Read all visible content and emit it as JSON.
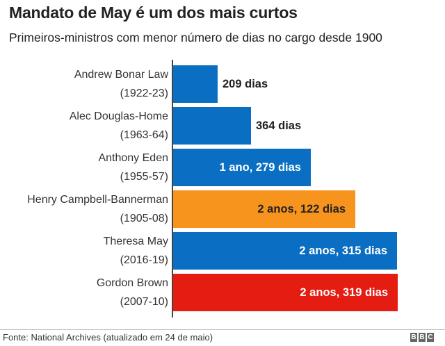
{
  "title": "Mandato de May é um dos mais curtos",
  "subtitle": "Primeiros-ministros com menor número de dias no cargo desde 1900",
  "bars": [
    {
      "name": "Andrew Bonar Law",
      "years": "(1922-23)",
      "label": "209 dias",
      "days": 209,
      "color": "#0a6fc2",
      "label_pos": "outside",
      "label_color": "#222222"
    },
    {
      "name": "Alec Douglas-Home",
      "years": "(1963-64)",
      "label": "364 dias",
      "days": 364,
      "color": "#0a6fc2",
      "label_pos": "outside",
      "label_color": "#222222"
    },
    {
      "name": "Anthony Eden",
      "years": "(1955-57)",
      "label": "1 ano, 279 dias",
      "days": 644,
      "color": "#0a6fc2",
      "label_pos": "inside",
      "label_color": "#ffffff"
    },
    {
      "name": "Henry Campbell-Bannerman",
      "years": "(1905-08)",
      "label": "2 anos, 122 dias",
      "days": 852,
      "color": "#f7941d",
      "label_pos": "inside",
      "label_color": "#222222"
    },
    {
      "name": "Theresa May",
      "years": "(2016-19)",
      "label": "2 anos, 315 dias",
      "days": 1045,
      "color": "#0a6fc2",
      "label_pos": "inside",
      "label_color": "#ffffff"
    },
    {
      "name": "Gordon Brown",
      "years": "(2007-10)",
      "label": "2 anos, 319 dias",
      "days": 1049,
      "color": "#e51c12",
      "label_pos": "inside",
      "label_color": "#ffffff"
    }
  ],
  "footer": {
    "source": "Fonte: National Archives (atualizado em 24 de maio)",
    "logo": [
      "B",
      "B",
      "C"
    ]
  },
  "chart_data": {
    "type": "bar",
    "orientation": "horizontal",
    "title": "Mandato de May é um dos mais curtos",
    "subtitle": "Primeiros-ministros com menor número de dias no cargo desde 1900",
    "categories": [
      "Andrew Bonar Law (1922-23)",
      "Alec Douglas-Home (1963-64)",
      "Anthony Eden (1955-57)",
      "Henry Campbell-Bannerman (1905-08)",
      "Theresa May (2016-19)",
      "Gordon Brown (2007-10)"
    ],
    "values": [
      209,
      364,
      644,
      852,
      1045,
      1049
    ],
    "data_labels": [
      "209 dias",
      "364 dias",
      "1 ano, 279 dias",
      "2 anos, 122 dias",
      "2 anos, 315 dias",
      "2 anos, 319 dias"
    ],
    "colors": [
      "#0a6fc2",
      "#0a6fc2",
      "#0a6fc2",
      "#f7941d",
      "#0a6fc2",
      "#e51c12"
    ],
    "xlabel": "",
    "ylabel": "",
    "unit": "dias",
    "grid": false,
    "legend": "none",
    "source": "Fonte: National Archives (atualizado em 24 de maio)"
  }
}
